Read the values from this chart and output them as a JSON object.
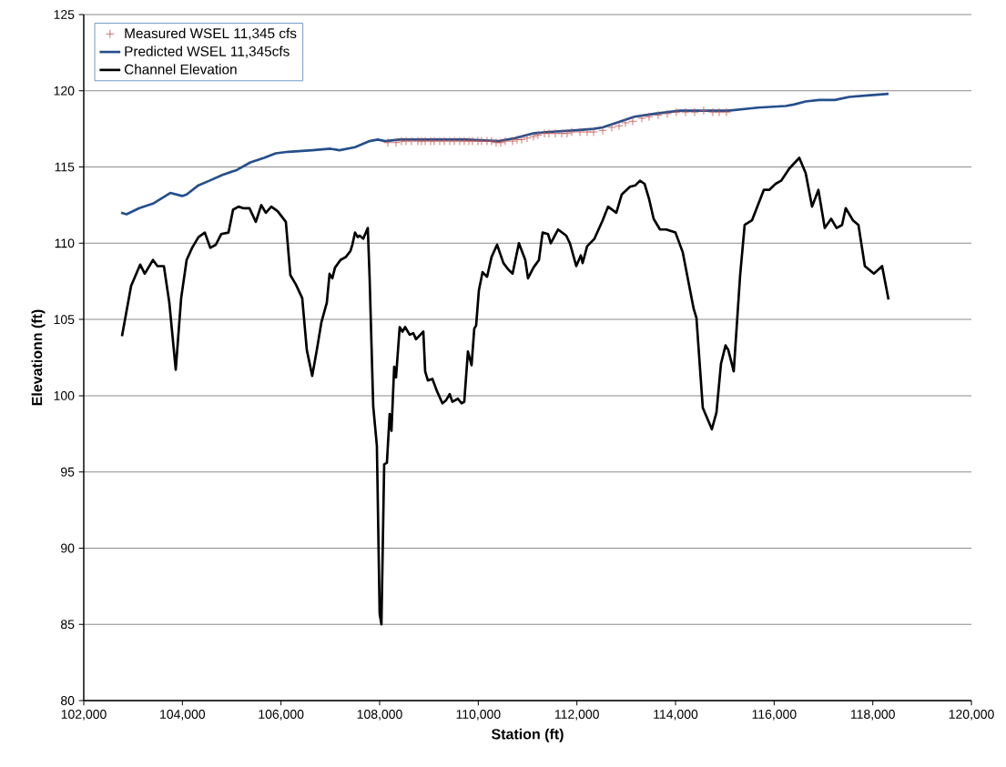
{
  "chart_data": {
    "type": "line",
    "xlabel": "Station (ft)",
    "ylabel": "Elevationn (ft)",
    "xlim": [
      102000,
      120000
    ],
    "ylim": [
      80,
      125
    ],
    "xticks": [
      {
        "value": 102000,
        "label": "102,000"
      },
      {
        "value": 104000,
        "label": "104,000"
      },
      {
        "value": 106000,
        "label": "106,000"
      },
      {
        "value": 108000,
        "label": "108,000"
      },
      {
        "value": 110000,
        "label": "110,000"
      },
      {
        "value": 112000,
        "label": "112,000"
      },
      {
        "value": 114000,
        "label": "114,000"
      },
      {
        "value": 116000,
        "label": "116,000"
      },
      {
        "value": 118000,
        "label": "118,000"
      },
      {
        "value": 120000,
        "label": "120,000"
      }
    ],
    "yticks": [
      80,
      85,
      90,
      95,
      100,
      105,
      110,
      115,
      120,
      125
    ],
    "grid": "y",
    "legend": "top left",
    "series": [
      {
        "name": "Measured WSEL 11,345 cfs",
        "type": "scatter",
        "marker": "cross",
        "color": "#c0504d",
        "x": [
          108166,
          108332,
          108443,
          108535,
          108646,
          108775,
          108849,
          108923,
          109033,
          109107,
          109218,
          109310,
          109421,
          109513,
          109624,
          109716,
          109809,
          109882,
          109993,
          110067,
          110178,
          110270,
          110362,
          110455,
          110547,
          110695,
          110787,
          110879,
          110990,
          111119,
          111212,
          111341,
          111433,
          111562,
          111692,
          111802,
          111895,
          112061,
          112208,
          112338,
          112522,
          112707,
          112854,
          112984,
          113131,
          113316,
          113464,
          113648,
          113833,
          114017,
          114202,
          114387,
          114571,
          114756,
          114885,
          115033
        ],
        "values": [
          116.6,
          116.6,
          116.7,
          116.7,
          116.7,
          116.7,
          116.7,
          116.7,
          116.7,
          116.7,
          116.7,
          116.7,
          116.7,
          116.7,
          116.7,
          116.7,
          116.7,
          116.7,
          116.7,
          116.7,
          116.7,
          116.7,
          116.6,
          116.6,
          116.7,
          116.7,
          116.8,
          116.8,
          116.9,
          117.0,
          117.1,
          117.2,
          117.2,
          117.2,
          117.2,
          117.2,
          117.3,
          117.3,
          117.3,
          117.3,
          117.4,
          117.6,
          117.7,
          117.9,
          118.0,
          118.2,
          118.3,
          118.4,
          118.5,
          118.6,
          118.6,
          118.6,
          118.7,
          118.6,
          118.6,
          118.6
        ]
      },
      {
        "name": "Predicted WSEL 11,345cfs",
        "marker": "none",
        "color": "#254f8c",
        "x": [
          102757,
          102868,
          103126,
          103403,
          103754,
          103994,
          104086,
          104326,
          104547,
          104824,
          105101,
          105378,
          105655,
          105895,
          106154,
          106633,
          107003,
          107187,
          107501,
          107796,
          107963,
          108110,
          108406,
          109070,
          109753,
          110418,
          110750,
          111101,
          111433,
          111932,
          112338,
          112522,
          112799,
          113168,
          113593,
          114091,
          114571,
          114830,
          115070,
          115679,
          116233,
          116399,
          116639,
          116916,
          117230,
          117525,
          117895,
          118319
        ],
        "values": [
          112.0,
          111.9,
          112.3,
          112.6,
          113.3,
          113.1,
          113.2,
          113.8,
          114.1,
          114.5,
          114.8,
          115.3,
          115.6,
          115.9,
          116.0,
          116.1,
          116.2,
          116.1,
          116.3,
          116.7,
          116.8,
          116.7,
          116.8,
          116.8,
          116.8,
          116.7,
          116.9,
          117.2,
          117.3,
          117.4,
          117.5,
          117.6,
          117.9,
          118.3,
          118.5,
          118.7,
          118.7,
          118.7,
          118.7,
          118.9,
          119.0,
          119.1,
          119.3,
          119.4,
          119.4,
          119.6,
          119.7,
          119.8
        ]
      },
      {
        "name": "Channel Elevation",
        "marker": "none",
        "color": "#000000",
        "x": [
          102775,
          102960,
          103145,
          103237,
          103403,
          103495,
          103625,
          103735,
          103865,
          103975,
          104086,
          104197,
          104326,
          104455,
          104566,
          104677,
          104787,
          104935,
          105027,
          105138,
          105230,
          105360,
          105489,
          105600,
          105692,
          105803,
          105932,
          106098,
          106190,
          106301,
          106430,
          106523,
          106633,
          106726,
          106818,
          106929,
          106984,
          107040,
          107095,
          107206,
          107316,
          107409,
          107446,
          107501,
          107556,
          107593,
          107667,
          107760,
          107796,
          107870,
          107944,
          108000,
          108036,
          108092,
          108147,
          108203,
          108240,
          108295,
          108332,
          108406,
          108461,
          108517,
          108609,
          108683,
          108738,
          108886,
          108923,
          108978,
          109070,
          109162,
          109273,
          109347,
          109421,
          109476,
          109587,
          109661,
          109716,
          109790,
          109864,
          109919,
          109956,
          110012,
          110086,
          110178,
          110270,
          110381,
          110510,
          110602,
          110695,
          110824,
          110953,
          111008,
          111119,
          111230,
          111304,
          111415,
          111470,
          111618,
          111784,
          111858,
          111987,
          112079,
          112116,
          112208,
          112356,
          112522,
          112633,
          112799,
          112910,
          113076,
          113187,
          113279,
          113371,
          113464,
          113556,
          113685,
          113814,
          113999,
          114147,
          114368,
          114424,
          114553,
          114737,
          114830,
          114922,
          115014,
          115070,
          115180,
          115310,
          115402,
          115550,
          115790,
          115900,
          116030,
          116141,
          116307,
          116510,
          116639,
          116768,
          116897,
          117026,
          117156,
          117266,
          117377,
          117451,
          117599,
          117709,
          117839,
          118023,
          118189,
          118319
        ],
        "values": [
          103.9,
          107.2,
          108.6,
          108.0,
          108.9,
          108.5,
          108.5,
          106.1,
          101.7,
          106.4,
          108.9,
          109.7,
          110.4,
          110.7,
          109.7,
          109.9,
          110.6,
          110.7,
          112.2,
          112.4,
          112.3,
          112.3,
          111.4,
          112.5,
          112.0,
          112.4,
          112.1,
          111.4,
          107.9,
          107.3,
          106.4,
          103.0,
          101.3,
          103.0,
          104.8,
          106.1,
          108.0,
          107.7,
          108.4,
          108.9,
          109.1,
          109.5,
          109.9,
          110.7,
          110.4,
          110.5,
          110.3,
          111.0,
          107.8,
          99.3,
          96.7,
          85.7,
          85.0,
          95.5,
          95.6,
          98.8,
          97.7,
          101.9,
          101.2,
          104.5,
          104.2,
          104.5,
          104.0,
          104.1,
          103.7,
          104.2,
          101.6,
          101.0,
          101.1,
          100.3,
          99.5,
          99.7,
          100.1,
          99.6,
          99.8,
          99.5,
          99.6,
          102.9,
          102.0,
          104.4,
          104.6,
          106.9,
          108.1,
          107.8,
          109.1,
          109.9,
          108.7,
          108.3,
          108.0,
          110.0,
          108.9,
          107.7,
          108.4,
          108.9,
          110.7,
          110.6,
          110.0,
          110.9,
          110.5,
          110.0,
          108.5,
          109.2,
          108.7,
          109.8,
          110.3,
          111.5,
          112.4,
          112.0,
          113.2,
          113.7,
          113.8,
          114.1,
          113.9,
          112.9,
          111.6,
          110.9,
          110.9,
          110.7,
          109.4,
          105.7,
          105.1,
          99.2,
          97.8,
          98.9,
          102.1,
          103.3,
          103.0,
          101.6,
          107.9,
          111.2,
          111.5,
          113.5,
          113.5,
          113.9,
          114.1,
          114.9,
          115.6,
          114.6,
          112.4,
          113.5,
          111.0,
          111.6,
          111.0,
          111.2,
          112.3,
          111.5,
          111.2,
          108.5,
          108.0,
          108.5,
          106.3
        ]
      }
    ]
  }
}
